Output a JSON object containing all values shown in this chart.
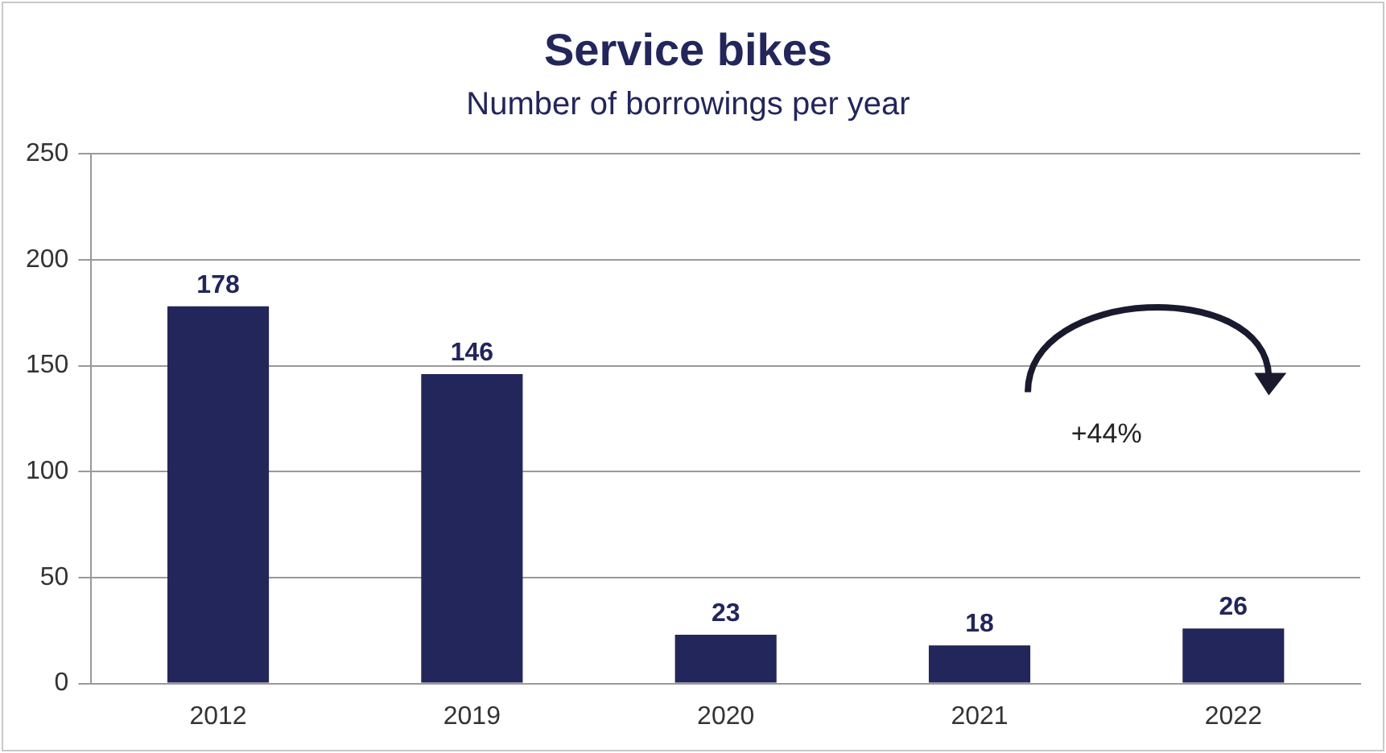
{
  "chart_data": {
    "type": "bar",
    "title": "Service bikes",
    "subtitle": "Number of borrowings per year",
    "categories": [
      "2012",
      "2019",
      "2020",
      "2021",
      "2022"
    ],
    "values": [
      178,
      146,
      23,
      18,
      26
    ],
    "color": "#23265a",
    "ylim": [
      0,
      250
    ],
    "yticks": [
      0,
      50,
      100,
      150,
      200,
      250
    ],
    "grid": "y",
    "legend": false,
    "data_labels": true,
    "annotations": [
      "+44%"
    ]
  }
}
